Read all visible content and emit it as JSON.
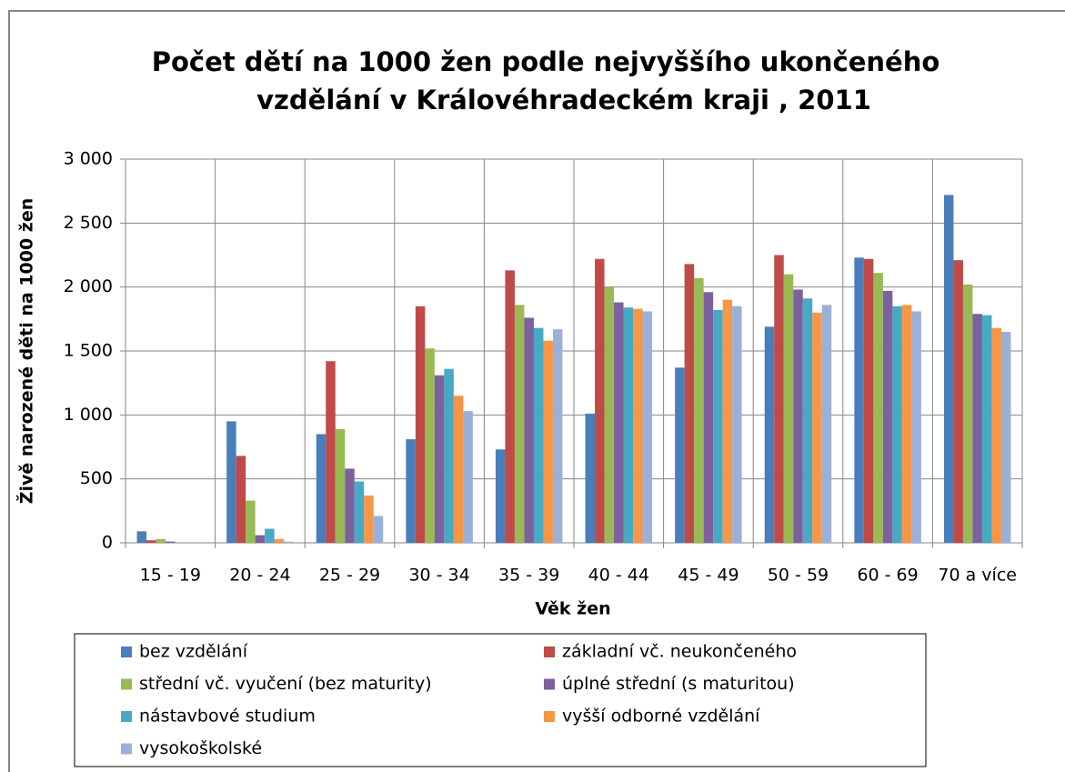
{
  "chart_data": {
    "type": "bar",
    "title": [
      "Počet dětí na 1000 žen podle nejvyššího ukončeného",
      "vzdělání v Královéhradeckém kraji , 2011"
    ],
    "x_label": "Věk žen",
    "y_label": "Živě narozené děti na 1000 žen",
    "categories": [
      "15 - 19",
      "20 - 24",
      "25 - 29",
      "30 - 34",
      "35 - 39",
      "40 - 44",
      "45 - 49",
      "50 - 59",
      "60 - 69",
      "70 a více"
    ],
    "series": [
      {
        "name": "bez vzdělání",
        "color": "#4a7ebb",
        "values": [
          90,
          950,
          850,
          810,
          730,
          1010,
          1370,
          1690,
          2230,
          2720
        ]
      },
      {
        "name": "základní vč. neukončeného",
        "color": "#be4b48",
        "values": [
          20,
          680,
          1420,
          1850,
          2130,
          2220,
          2180,
          2250,
          2220,
          2210
        ]
      },
      {
        "name": "střední vč. vyučení (bez maturity)",
        "color": "#98b954",
        "values": [
          30,
          330,
          890,
          1520,
          1860,
          2000,
          2070,
          2100,
          2110,
          2020
        ]
      },
      {
        "name": "úplné střední (s maturitou)",
        "color": "#7d60a0",
        "values": [
          10,
          60,
          580,
          1310,
          1760,
          1880,
          1960,
          1980,
          1970,
          1790
        ]
      },
      {
        "name": "nástavbové studium",
        "color": "#46aac5",
        "values": [
          0,
          110,
          480,
          1360,
          1680,
          1840,
          1820,
          1910,
          1850,
          1780
        ]
      },
      {
        "name": "vyšší odborné vzdělání",
        "color": "#f79646",
        "values": [
          0,
          30,
          370,
          1150,
          1580,
          1830,
          1900,
          1800,
          1860,
          1680
        ]
      },
      {
        "name": "vysokoškolské",
        "color": "#9bb0d9",
        "values": [
          0,
          10,
          210,
          1030,
          1670,
          1810,
          1850,
          1860,
          1810,
          1650
        ]
      }
    ],
    "ylim": [
      0,
      3000
    ],
    "yticks": [
      0,
      500,
      {
        "value": 1000,
        "label": "1 000"
      },
      {
        "value": 1500,
        "label": "1 500"
      },
      {
        "value": 2000,
        "label": "2 000"
      },
      {
        "value": 2500,
        "label": "2 500"
      },
      {
        "value": 3000,
        "label": "3 000"
      }
    ],
    "grid": true,
    "legend": "bottom"
  }
}
